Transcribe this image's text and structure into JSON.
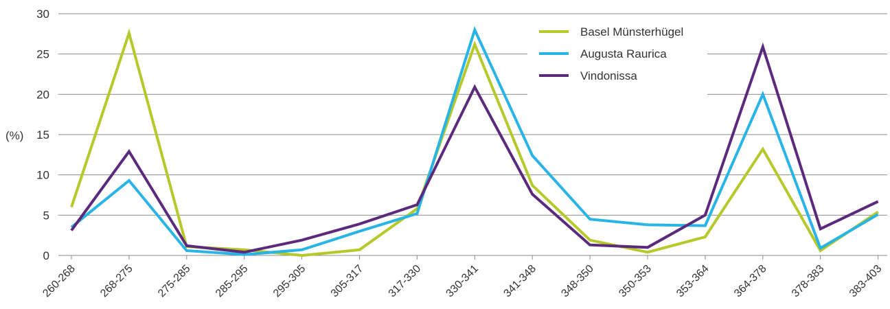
{
  "chart_data": {
    "type": "line",
    "ylabel": "(%)",
    "xlabel": "",
    "ylim": [
      0,
      30
    ],
    "yticks": [
      0,
      5,
      10,
      15,
      20,
      25,
      30
    ],
    "grid": true,
    "legend_position": "top-right",
    "categories": [
      "260-268",
      "268-275",
      "275-285",
      "285-295",
      "295-305",
      "305-317",
      "317-330",
      "330-341",
      "341-348",
      "348-350",
      "350-353",
      "353-364",
      "364-378",
      "378-383",
      "383-403"
    ],
    "series": [
      {
        "name": "Basel Münsterhügel",
        "color": "#b5c92b",
        "values": [
          6.0,
          27.6,
          1.1,
          0.7,
          0.0,
          0.7,
          5.8,
          26.2,
          8.7,
          1.9,
          0.4,
          2.3,
          13.2,
          0.6,
          5.4
        ]
      },
      {
        "name": "Augusta Raurica",
        "color": "#29b4e6",
        "values": [
          3.5,
          9.3,
          0.6,
          0.1,
          0.7,
          3.0,
          5.2,
          28.0,
          12.4,
          4.5,
          3.8,
          3.7,
          20.0,
          0.9,
          5.1
        ]
      },
      {
        "name": "Vindonissa",
        "color": "#5c2a7c",
        "values": [
          3.1,
          12.9,
          1.2,
          0.4,
          1.9,
          3.9,
          6.3,
          20.9,
          7.6,
          1.3,
          1.0,
          5.0,
          25.9,
          3.3,
          6.7
        ]
      }
    ]
  }
}
